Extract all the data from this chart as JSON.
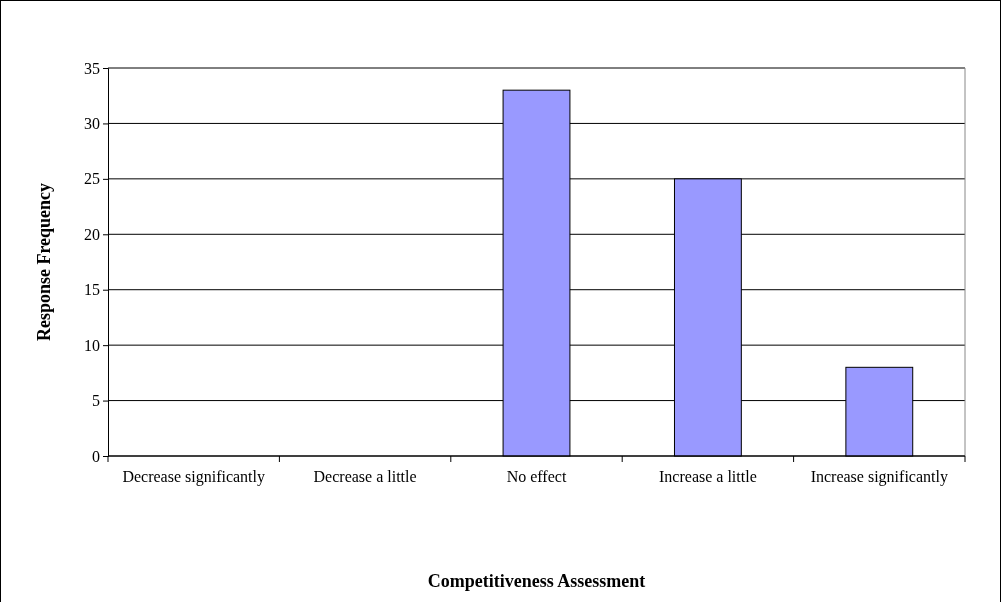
{
  "chart_data": {
    "type": "bar",
    "xlabel": "Competitiveness Assessment",
    "ylabel": "Response Frequency",
    "categories": [
      "Decrease significantly",
      "Decrease a little",
      "No effect",
      "Increase a little",
      "Increase significantly"
    ],
    "values": [
      0,
      0,
      33,
      25,
      8
    ],
    "color": "#9999ff",
    "ylim": [
      0,
      35
    ],
    "yticks": [
      0,
      5,
      10,
      15,
      20,
      25,
      30,
      35
    ],
    "grid": "y"
  }
}
